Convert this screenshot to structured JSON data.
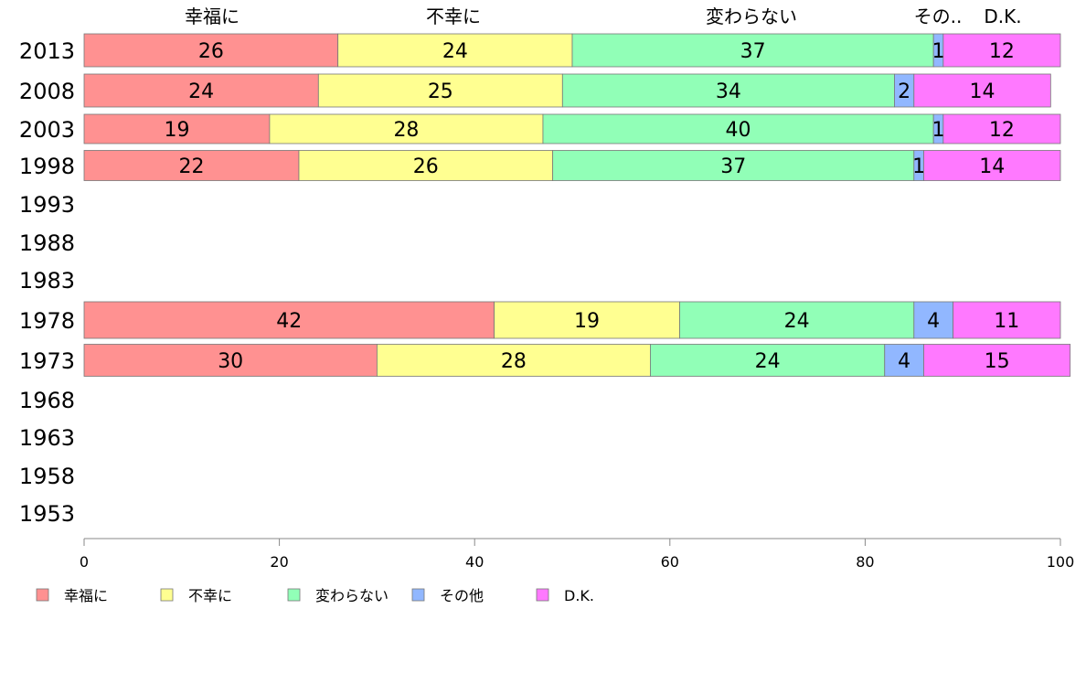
{
  "chart_data": {
    "type": "bar",
    "orientation": "horizontal",
    "stacked": true,
    "xlim": [
      0,
      100
    ],
    "xticks": [
      0,
      20,
      40,
      60,
      80,
      100
    ],
    "grid": false,
    "legend_position": "bottom-left",
    "top_labels": [
      "幸福に",
      "不幸に",
      "変わらない",
      "その..",
      "D.K."
    ],
    "categories": [
      "2013",
      "2008",
      "2003",
      "1998",
      "1993",
      "1988",
      "1983",
      "1978",
      "1973",
      "1968",
      "1963",
      "1958",
      "1953"
    ],
    "series": [
      {
        "name": "幸福に",
        "color": "#ff9191",
        "values": [
          26,
          24,
          19,
          22,
          null,
          null,
          null,
          42,
          30,
          null,
          null,
          null,
          null
        ]
      },
      {
        "name": "不幸に",
        "color": "#ffff91",
        "values": [
          24,
          25,
          28,
          26,
          null,
          null,
          null,
          19,
          28,
          null,
          null,
          null,
          null
        ]
      },
      {
        "name": "変わらない",
        "color": "#91ffb7",
        "values": [
          37,
          34,
          40,
          37,
          null,
          null,
          null,
          24,
          24,
          null,
          null,
          null,
          null
        ]
      },
      {
        "name": "その他",
        "color": "#91b7ff",
        "values": [
          1,
          2,
          1,
          1,
          null,
          null,
          null,
          4,
          4,
          null,
          null,
          null,
          null
        ]
      },
      {
        "name": "D.K.",
        "color": "#ff79ff",
        "values": [
          12,
          14,
          12,
          14,
          null,
          null,
          null,
          11,
          15,
          null,
          null,
          null,
          null
        ]
      }
    ]
  }
}
